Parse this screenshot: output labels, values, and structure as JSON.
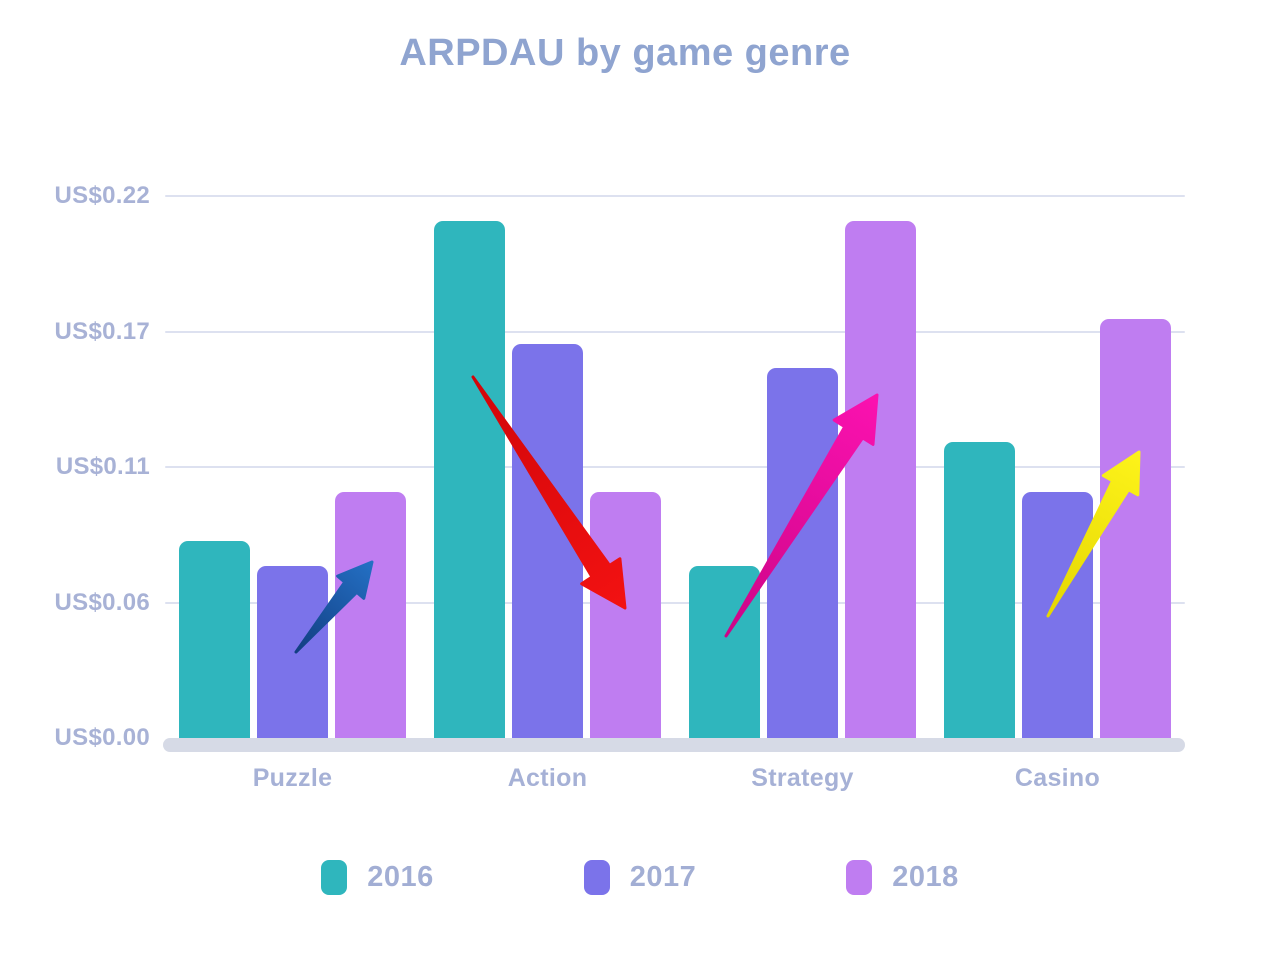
{
  "chart_data": {
    "type": "bar",
    "title": "ARPDAU by game genre",
    "categories": [
      "Puzzle",
      "Action",
      "Strategy",
      "Casino"
    ],
    "series": [
      {
        "name": "2016",
        "color": "#2fb6bd",
        "values": [
          0.08,
          0.21,
          0.07,
          0.12
        ]
      },
      {
        "name": "2017",
        "color": "#7b73ea",
        "values": [
          0.07,
          0.16,
          0.15,
          0.1
        ]
      },
      {
        "name": "2018",
        "color": "#bf7df1",
        "values": [
          0.1,
          0.1,
          0.21,
          0.17
        ]
      }
    ],
    "y_ticks": [
      {
        "label": "US$0.22",
        "value": 0.22
      },
      {
        "label": "US$0.17",
        "value": 0.165
      },
      {
        "label": "US$0.11",
        "value": 0.11
      },
      {
        "label": "US$0.06",
        "value": 0.055
      },
      {
        "label": "US$0.00",
        "value": 0
      }
    ],
    "ylim": [
      0,
      0.22
    ],
    "grid": true,
    "legend_position": "bottom",
    "currency_prefix": "US$"
  },
  "annotations": {
    "arrows": [
      {
        "name": "blue-arrow",
        "direction": "up-right",
        "from": [
          296,
          652
        ],
        "to": [
          372,
          562
        ],
        "head": 33,
        "color_tail": "#123e82",
        "color_head": "#2470c4"
      },
      {
        "name": "red-arrow",
        "direction": "down-right",
        "from": [
          473,
          377
        ],
        "to": [
          625,
          608
        ],
        "head": 44,
        "color_tail": "#d10509",
        "color_head": "#f31212"
      },
      {
        "name": "magenta-arrow",
        "direction": "up-right",
        "from": [
          726,
          636
        ],
        "to": [
          877,
          395
        ],
        "head": 44,
        "color_tail": "#cc0587",
        "color_head": "#fb12b0"
      },
      {
        "name": "yellow-arrow",
        "direction": "up-right",
        "from": [
          1048,
          616
        ],
        "to": [
          1139,
          452
        ],
        "head": 38,
        "color_tail": "#e5d602",
        "color_head": "#fdf31a"
      }
    ]
  },
  "colors": {
    "title_text": "#8fa4d0",
    "axis_text": "#a8b2d6",
    "gridline": "#dde1f0",
    "baseline_strip": "#d6dae6",
    "background": "#ffffff"
  }
}
